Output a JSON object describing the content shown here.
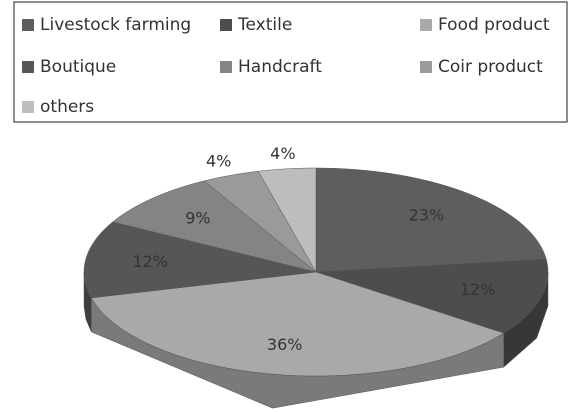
{
  "chart_data": {
    "type": "pie",
    "categories": [
      "Livestock farming",
      "Textile",
      "Food product",
      "Boutique",
      "Handcraft",
      "Coir product",
      "others"
    ],
    "values": [
      23,
      12,
      36,
      12,
      9,
      4,
      4
    ],
    "value_labels": [
      "23%",
      "12%",
      "36%",
      "12%",
      "9%",
      "4%",
      "4%"
    ],
    "colors": [
      "#5e5e5e",
      "#4d4d4d",
      "#a9a9a9",
      "#565656",
      "#848484",
      "#9a9a9a",
      "#bdbdbd"
    ],
    "legend": "top"
  }
}
